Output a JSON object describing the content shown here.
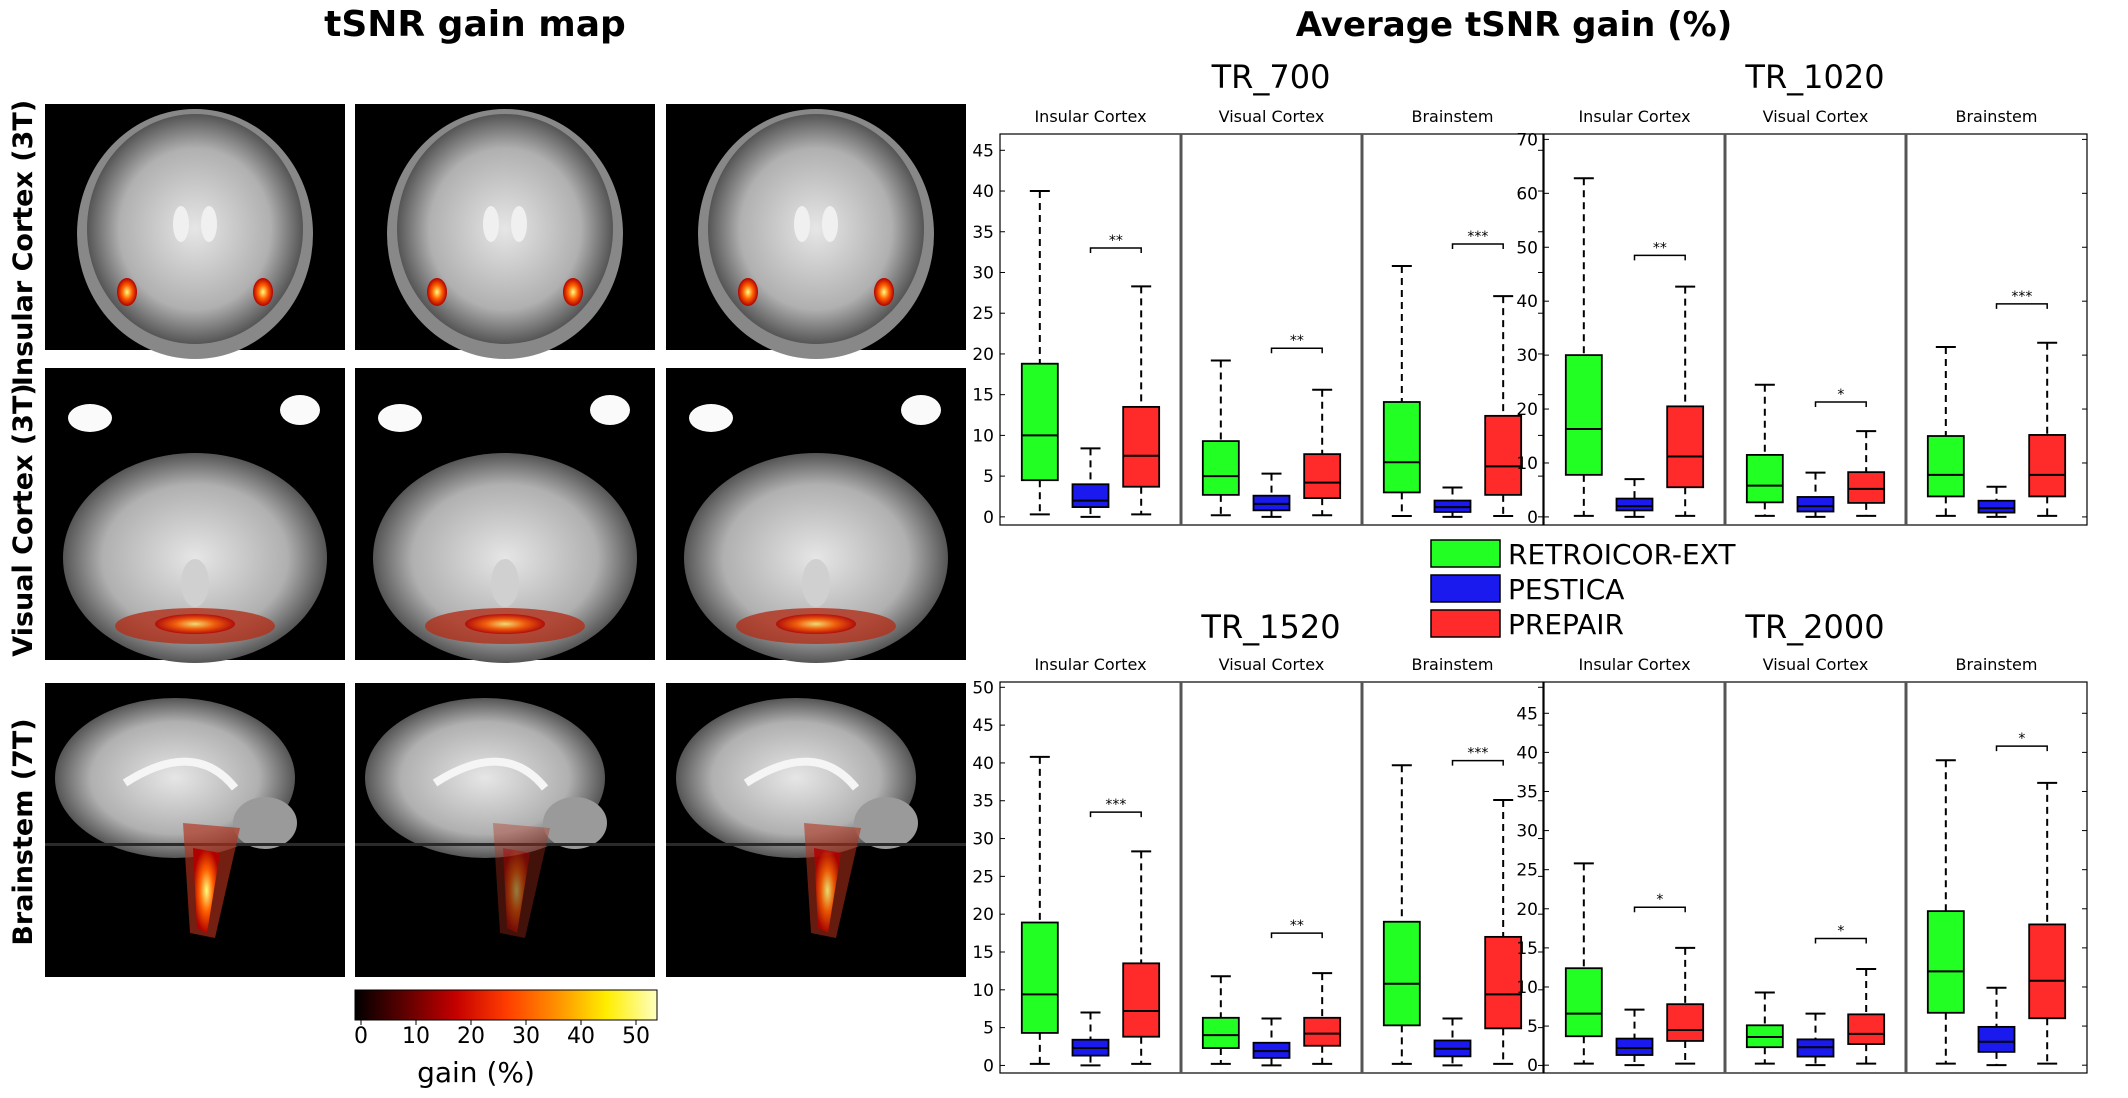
{
  "left_panel": {
    "title": "tSNR gain map",
    "row_labels": [
      "Insular Cortex (3T)",
      "Visual Cortex (3T)",
      "Brainstem (7T)"
    ],
    "colorbar": {
      "ticks": [
        "0",
        "10",
        "20",
        "30",
        "40",
        "50"
      ],
      "label": "gain (%)",
      "colors": [
        "#000000",
        "#600000",
        "#c40000",
        "#ff3c00",
        "#ff9000",
        "#ffee00",
        "#ffffc0"
      ]
    },
    "images": [
      {
        "kind": "coronal"
      },
      {
        "kind": "coronal"
      },
      {
        "kind": "coronal"
      },
      {
        "kind": "axial"
      },
      {
        "kind": "axial"
      },
      {
        "kind": "axial"
      },
      {
        "kind": "sagittal",
        "intensity": 1.0
      },
      {
        "kind": "sagittal",
        "intensity": 0.45
      },
      {
        "kind": "sagittal",
        "intensity": 0.85
      }
    ]
  },
  "right_title": "Average tSNR gain (%)",
  "legend": {
    "entries": [
      {
        "name": "RETROICOR-EXT",
        "color": "#22ff22"
      },
      {
        "name": "PESTICA",
        "color": "#1a1aee"
      },
      {
        "name": "PREPAIR",
        "color": "#ff2a2a"
      }
    ]
  },
  "chart_data": [
    {
      "type": "box",
      "title": "TR_700",
      "ylim": [
        -1,
        47
      ],
      "yticks": [
        0,
        5,
        10,
        15,
        20,
        25,
        30,
        35,
        40,
        45
      ],
      "groups": [
        {
          "name": "Insular Cortex",
          "boxes": [
            {
              "series": "RETROICOR-EXT",
              "min": 0.3,
              "q1": 4.5,
              "median": 10,
              "q3": 18.8,
              "max": 40
            },
            {
              "series": "PESTICA",
              "min": 0.0,
              "q1": 1.2,
              "median": 2.0,
              "q3": 4.0,
              "max": 8.4
            },
            {
              "series": "PREPAIR",
              "min": 0.3,
              "q1": 3.7,
              "median": 7.5,
              "q3": 13.5,
              "max": 28.3
            }
          ],
          "sig": "**",
          "sig_y": 33
        },
        {
          "name": "Visual Cortex",
          "boxes": [
            {
              "series": "RETROICOR-EXT",
              "min": 0.2,
              "q1": 2.7,
              "median": 5.0,
              "q3": 9.3,
              "max": 19.2
            },
            {
              "series": "PESTICA",
              "min": 0.0,
              "q1": 0.8,
              "median": 1.6,
              "q3": 2.6,
              "max": 5.3
            },
            {
              "series": "PREPAIR",
              "min": 0.2,
              "q1": 2.3,
              "median": 4.2,
              "q3": 7.7,
              "max": 15.6
            }
          ],
          "sig": "**",
          "sig_y": 20.7
        },
        {
          "name": "Brainstem",
          "boxes": [
            {
              "series": "RETROICOR-EXT",
              "min": 0.1,
              "q1": 3.0,
              "median": 6.7,
              "q3": 14.1,
              "max": 30.8
            },
            {
              "series": "PESTICA",
              "min": 0.0,
              "q1": 0.6,
              "median": 1.2,
              "q3": 2.0,
              "max": 3.6
            },
            {
              "series": "PREPAIR",
              "min": 0.1,
              "q1": 2.7,
              "median": 6.2,
              "q3": 12.4,
              "max": 27.1
            }
          ],
          "sig": "***",
          "sig_y": 33.5
        }
      ]
    },
    {
      "type": "box",
      "title": "TR_1020",
      "ylim": [
        -1.5,
        71
      ],
      "yticks": [
        0,
        10,
        20,
        30,
        40,
        50,
        60,
        70
      ],
      "groups": [
        {
          "name": "Insular Cortex",
          "boxes": [
            {
              "series": "RETROICOR-EXT",
              "min": 0.2,
              "q1": 7.8,
              "median": 16.3,
              "q3": 30,
              "max": 62.8
            },
            {
              "series": "PESTICA",
              "min": 0.0,
              "q1": 1.2,
              "median": 2.0,
              "q3": 3.4,
              "max": 7.0
            },
            {
              "series": "PREPAIR",
              "min": 0.2,
              "q1": 5.5,
              "median": 11.2,
              "q3": 20.5,
              "max": 42.7
            }
          ],
          "sig": "**",
          "sig_y": 48.5
        },
        {
          "name": "Visual Cortex",
          "boxes": [
            {
              "series": "RETROICOR-EXT",
              "min": 0.2,
              "q1": 2.7,
              "median": 5.8,
              "q3": 11.5,
              "max": 24.5
            },
            {
              "series": "PESTICA",
              "min": 0.0,
              "q1": 1.0,
              "median": 2.0,
              "q3": 3.7,
              "max": 8.2
            },
            {
              "series": "PREPAIR",
              "min": 0.2,
              "q1": 2.6,
              "median": 5.2,
              "q3": 8.3,
              "max": 15.9
            }
          ],
          "sig": "*",
          "sig_y": 21.3
        },
        {
          "name": "Brainstem",
          "boxes": [
            {
              "series": "RETROICOR-EXT",
              "min": 0.2,
              "q1": 3.8,
              "median": 7.8,
              "q3": 15.0,
              "max": 31.5
            },
            {
              "series": "PESTICA",
              "min": 0.0,
              "q1": 0.8,
              "median": 1.6,
              "q3": 3.0,
              "max": 5.6
            },
            {
              "series": "PREPAIR",
              "min": 0.2,
              "q1": 3.8,
              "median": 7.8,
              "q3": 15.2,
              "max": 32.3
            }
          ],
          "sig": "***",
          "sig_y": 39.5
        }
      ]
    },
    {
      "type": "box",
      "title": "TR_1520",
      "ylim": [
        -1,
        50.7
      ],
      "yticks": [
        0,
        5,
        10,
        15,
        20,
        25,
        30,
        35,
        40,
        45,
        50
      ],
      "groups": [
        {
          "name": "Insular Cortex",
          "boxes": [
            {
              "series": "RETROICOR-EXT",
              "min": 0.2,
              "q1": 4.3,
              "median": 9.4,
              "q3": 18.9,
              "max": 40.8
            },
            {
              "series": "PESTICA",
              "min": 0.0,
              "q1": 1.3,
              "median": 2.3,
              "q3": 3.4,
              "max": 7.0
            },
            {
              "series": "PREPAIR",
              "min": 0.2,
              "q1": 3.8,
              "median": 7.2,
              "q3": 13.5,
              "max": 28.3
            }
          ],
          "sig": "***",
          "sig_y": 33.5
        },
        {
          "name": "Visual Cortex",
          "boxes": [
            {
              "series": "RETROICOR-EXT",
              "min": 0.2,
              "q1": 2.3,
              "median": 4.0,
              "q3": 6.3,
              "max": 11.8
            },
            {
              "series": "PESTICA",
              "min": 0.0,
              "q1": 1.0,
              "median": 1.9,
              "q3": 3.0,
              "max": 6.2
            },
            {
              "series": "PREPAIR",
              "min": 0.2,
              "q1": 2.6,
              "median": 4.2,
              "q3": 6.3,
              "max": 12.2
            }
          ],
          "sig": "**",
          "sig_y": 17.5
        },
        {
          "name": "Brainstem",
          "boxes": [
            {
              "series": "RETROICOR-EXT",
              "min": 0.2,
              "q1": 5.3,
              "median": 10.8,
              "q3": 19.0,
              "max": 39.7
            },
            {
              "series": "PESTICA",
              "min": 0.0,
              "q1": 1.2,
              "median": 2.2,
              "q3": 3.3,
              "max": 6.2
            },
            {
              "series": "PREPAIR",
              "min": 0.2,
              "q1": 4.9,
              "median": 9.4,
              "q3": 17.0,
              "max": 35.1
            }
          ],
          "sig": "***",
          "sig_y": 40.3
        }
      ]
    },
    {
      "type": "box",
      "title": "TR_2000",
      "ylim": [
        -1,
        49
      ],
      "yticks": [
        0,
        5,
        10,
        15,
        20,
        25,
        30,
        35,
        40,
        45
      ],
      "groups": [
        {
          "name": "Insular Cortex",
          "boxes": [
            {
              "series": "RETROICOR-EXT",
              "min": 0.2,
              "q1": 3.7,
              "median": 6.6,
              "q3": 12.4,
              "max": 25.8
            },
            {
              "series": "PESTICA",
              "min": 0.0,
              "q1": 1.3,
              "median": 2.2,
              "q3": 3.4,
              "max": 7.1
            },
            {
              "series": "PREPAIR",
              "min": 0.2,
              "q1": 3.1,
              "median": 4.5,
              "q3": 7.8,
              "max": 15.0
            }
          ],
          "sig": "*",
          "sig_y": 20.2
        },
        {
          "name": "Visual Cortex",
          "boxes": [
            {
              "series": "RETROICOR-EXT",
              "min": 0.2,
              "q1": 2.3,
              "median": 3.6,
              "q3": 5.1,
              "max": 9.3
            },
            {
              "series": "PESTICA",
              "min": 0.0,
              "q1": 1.1,
              "median": 2.3,
              "q3": 3.3,
              "max": 6.6
            },
            {
              "series": "PREPAIR",
              "min": 0.2,
              "q1": 2.7,
              "median": 4.0,
              "q3": 6.5,
              "max": 12.3
            }
          ],
          "sig": "*",
          "sig_y": 16.2
        },
        {
          "name": "Brainstem",
          "boxes": [
            {
              "series": "RETROICOR-EXT",
              "min": 0.2,
              "q1": 6.7,
              "median": 12.0,
              "q3": 19.7,
              "max": 39.0
            },
            {
              "series": "PESTICA",
              "min": 0.0,
              "q1": 1.7,
              "median": 3.0,
              "q3": 4.9,
              "max": 9.9
            },
            {
              "series": "PREPAIR",
              "min": 0.2,
              "q1": 6.0,
              "median": 10.8,
              "q3": 18.0,
              "max": 36.1
            }
          ],
          "sig": "*",
          "sig_y": 40.8
        }
      ]
    }
  ]
}
